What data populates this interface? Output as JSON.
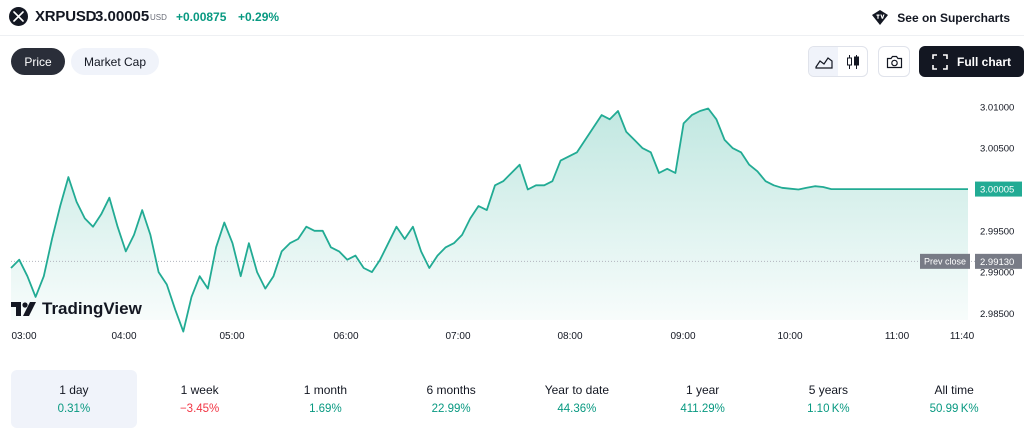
{
  "header": {
    "symbol": "XRPUSD",
    "price": "3.00005",
    "currency": "USD",
    "change": "+0.00875",
    "change_pct": "+0.29%",
    "supercharts_label": "See on Supercharts",
    "icons": {
      "logo": "xrp-logo-icon",
      "supercharts": "tradingview-logo-icon"
    }
  },
  "tabs": [
    {
      "label": "Price",
      "active": true
    },
    {
      "label": "Market Cap",
      "active": false
    }
  ],
  "toolbar": {
    "full_chart_label": "Full chart",
    "icons": [
      "area-chart-icon",
      "candles-icon",
      "camera-icon",
      "fullscreen-icon"
    ]
  },
  "brand": {
    "label": "TradingView"
  },
  "colors": {
    "up": "#089981",
    "down": "#f23645",
    "line": "#22ab94",
    "text": "#131722"
  },
  "chart_data": {
    "type": "area",
    "x_labels": [
      "03:00",
      "04:00",
      "05:00",
      "06:00",
      "07:00",
      "08:00",
      "09:00",
      "10:00",
      "11:00",
      "11:40"
    ],
    "y_ticks": [
      "3.01000",
      "3.00500",
      "2.99500",
      "2.99000",
      "2.98500"
    ],
    "last_price_label": "3.00005",
    "prev_close_label": "Prev close",
    "prev_close_value": "2.99130",
    "last_price": 3.00005,
    "prev_close": 2.9913,
    "ylim": [
      2.9842,
      3.0118
    ],
    "x": [
      0,
      0.1,
      0.2,
      0.3,
      0.4,
      0.5,
      0.6,
      0.7,
      0.8,
      0.9,
      1.0,
      1.1,
      1.2,
      1.3,
      1.4,
      1.5,
      1.6,
      1.7,
      1.8,
      1.9,
      2.0,
      2.1,
      2.2,
      2.3,
      2.4,
      2.5,
      2.6,
      2.7,
      2.8,
      2.9,
      3.0,
      3.1,
      3.2,
      3.3,
      3.4,
      3.5,
      3.6,
      3.7,
      3.8,
      3.9,
      4.0,
      4.1,
      4.2,
      4.3,
      4.4,
      4.5,
      4.6,
      4.7,
      4.8,
      4.9,
      5.0,
      5.1,
      5.2,
      5.3,
      5.4,
      5.5,
      5.6,
      5.7,
      5.8,
      5.9,
      6.0,
      6.1,
      6.2,
      6.3,
      6.4,
      6.5,
      6.6,
      6.7,
      6.8,
      6.9,
      7.0,
      7.1,
      7.2,
      7.3,
      7.4,
      7.5,
      7.6,
      7.7,
      7.8,
      7.9,
      8.0,
      8.1,
      8.2,
      8.3,
      8.4,
      8.5,
      8.6,
      8.7,
      8.8,
      8.9,
      9.0,
      9.1,
      9.2,
      9.3,
      9.4,
      9.5,
      9.6,
      9.7,
      9.8,
      9.9,
      10.0,
      10.1,
      10.2,
      10.3,
      10.4,
      10.5,
      10.6,
      10.7,
      10.8,
      10.9,
      11.0,
      11.1,
      11.2,
      11.3,
      11.4,
      11.5,
      11.6,
      11.667
    ],
    "y": [
      2.9905,
      2.9915,
      2.9895,
      2.987,
      2.9895,
      2.994,
      2.998,
      3.0015,
      2.9985,
      2.9965,
      2.9955,
      2.997,
      2.999,
      2.9955,
      2.9925,
      2.9945,
      2.9975,
      2.9945,
      2.99,
      2.9885,
      2.9855,
      2.9828,
      2.987,
      2.9895,
      2.988,
      2.993,
      2.996,
      2.9935,
      2.9895,
      2.9935,
      2.99,
      2.988,
      2.9895,
      2.9925,
      2.9935,
      2.994,
      2.9955,
      2.995,
      2.995,
      2.993,
      2.9925,
      2.9915,
      2.992,
      2.9905,
      2.99,
      2.9915,
      2.9935,
      2.9955,
      2.994,
      2.9955,
      2.9925,
      2.9905,
      2.992,
      2.993,
      2.9935,
      2.9945,
      2.9965,
      2.998,
      2.9975,
      3.0005,
      3.001,
      3.002,
      3.003,
      3.0,
      3.0005,
      3.0005,
      3.001,
      3.0035,
      3.004,
      3.0045,
      3.006,
      3.0075,
      3.009,
      3.0085,
      3.0095,
      3.007,
      3.006,
      3.005,
      3.0045,
      3.002,
      3.0025,
      3.002,
      3.008,
      3.009,
      3.0095,
      3.0098,
      3.0085,
      3.006,
      3.005,
      3.0045,
      3.003,
      3.0022,
      3.001,
      3.0005,
      3.0002,
      3.0001,
      3.0,
      3.0002,
      3.0004,
      3.0003,
      3.00005,
      3.00005,
      3.00005,
      3.00005,
      3.00005,
      3.00005,
      3.00005,
      3.00005,
      3.00005,
      3.00005,
      3.00005,
      3.00005,
      3.00005,
      3.00005,
      3.00005,
      3.00005,
      3.00005,
      3.00005
    ]
  },
  "periods": [
    {
      "label": "1 day",
      "value": "0.31%",
      "negative": false,
      "selected": true
    },
    {
      "label": "1 week",
      "value": "−3.45%",
      "negative": true,
      "selected": false
    },
    {
      "label": "1 month",
      "value": "1.69%",
      "negative": false,
      "selected": false
    },
    {
      "label": "6 months",
      "value": "22.99%",
      "negative": false,
      "selected": false
    },
    {
      "label": "Year to date",
      "value": "44.36%",
      "negative": false,
      "selected": false
    },
    {
      "label": "1 year",
      "value": "411.29%",
      "negative": false,
      "selected": false
    },
    {
      "label": "5 years",
      "value": "1.10 K%",
      "negative": false,
      "selected": false
    },
    {
      "label": "All time",
      "value": "50.99 K%",
      "negative": false,
      "selected": false
    }
  ]
}
